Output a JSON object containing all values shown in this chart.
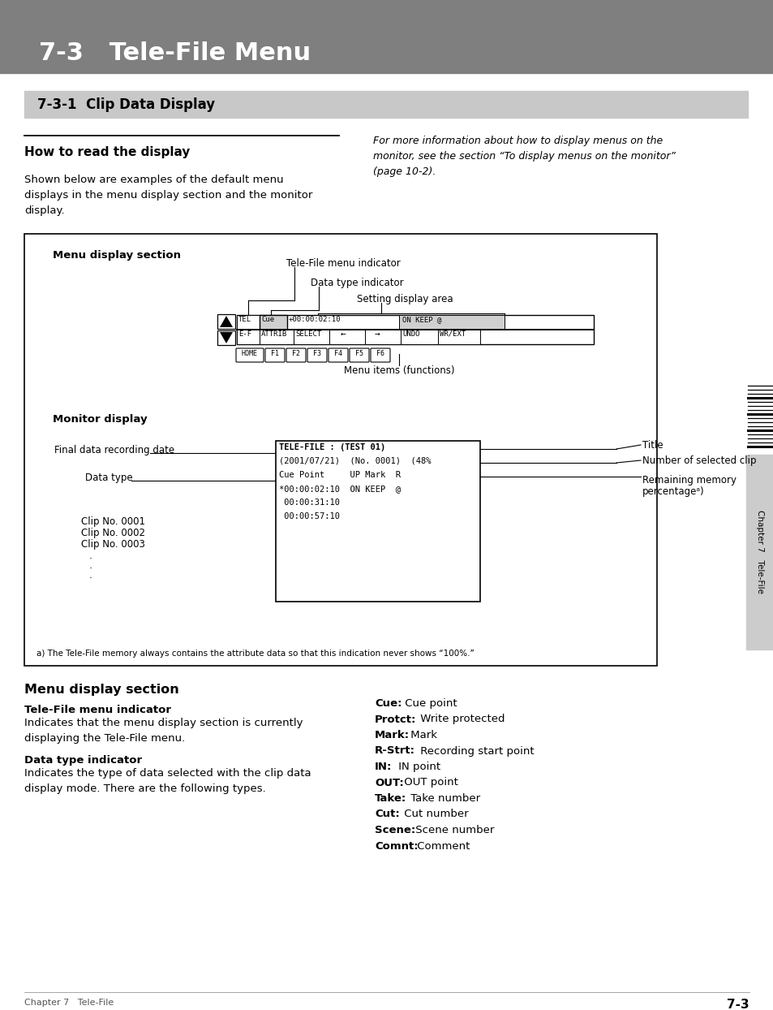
{
  "title_bar_text": "7-3   Tele-File Menu",
  "title_bar_color": "#7f7f7f",
  "title_text_color": "#ffffff",
  "section_bar_text": "7-3-1  Clip Data Display",
  "section_bar_color": "#c8c8c8",
  "heading_how_to": "How to read the display",
  "body_left": "Shown below are examples of the default menu\ndisplays in the menu display section and the monitor\ndisplay.",
  "body_right": "For more information about how to display menus on the\nmonitor, see the section “To display menus on the monitor”\n(page 10-2).",
  "label_mds": "Menu display section",
  "label_tfi": "Tele-File menu indicator",
  "label_dti": "Data type indicator",
  "label_sda": "Setting display area",
  "label_mif": "Menu items (functions)",
  "label_md": "Monitor display",
  "label_title": "Title",
  "label_nsc": "Number of selected clip",
  "label_rmp_1": "Remaining memory",
  "label_rmp_2": "percentageᵃ)",
  "label_fdr": "Final data recording date",
  "label_dt": "Data type",
  "monitor_lines": [
    "TELE-FILE : (TEST 01)",
    "(2001/07/21)  (No. 0001)  (48%",
    "Cue Point     UP Mark  R",
    "*00:00:02:10  ON KEEP  @",
    " 00:00:31:10",
    " 00:00:57:10"
  ],
  "clip_labels": [
    "Clip No. 0001",
    "Clip No. 0002",
    "Clip No. 0003"
  ],
  "footnote": "a) The Tele-File memory always contains the attribute data so that this indication never shows “100%.”",
  "s2_heading": "Menu display section",
  "s2_tfi_h": "Tele-File menu indicator",
  "s2_tfi_b": "Indicates that the menu display section is currently\ndisplaying the Tele-File menu.",
  "s2_dti_h": "Data type indicator",
  "s2_dti_b": "Indicates the type of data selected with the clip data\ndisplay mode. There are the following types.",
  "right_items_bold": [
    "Cue:",
    "Protct:",
    "Mark:",
    "R-Strt:",
    "IN:",
    "OUT:",
    "Take:",
    "Cut:",
    "Scene:",
    "Comnt:"
  ],
  "right_items_normal": [
    "Cue point",
    "Write protected",
    "Mark",
    "Recording start point",
    "IN point",
    "OUT point",
    "Take number",
    "Cut number",
    "Scene number",
    "Comment"
  ],
  "footer_left": "Chapter 7   Tele-File",
  "footer_right": "7-3",
  "chapter_sidebar": "Chapter 7   Tele-File"
}
